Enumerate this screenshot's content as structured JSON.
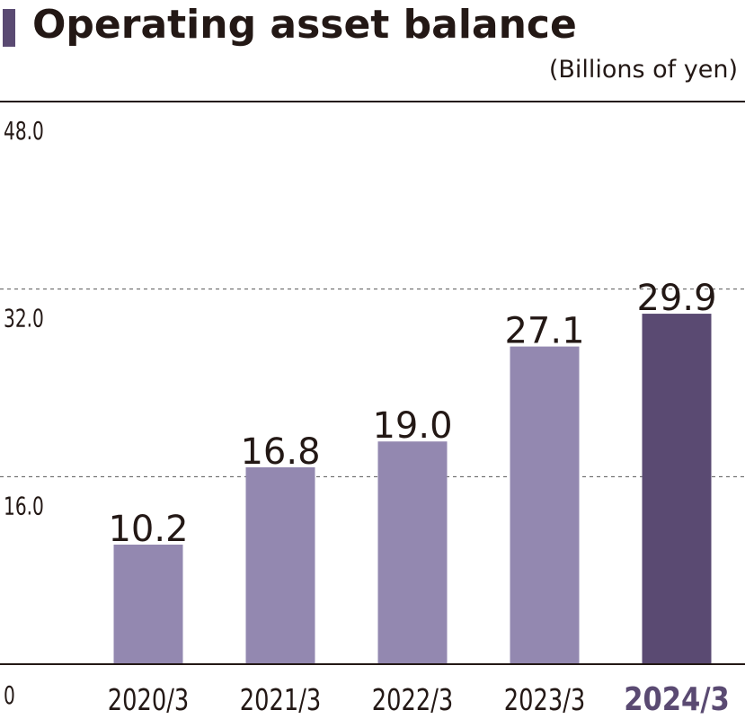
{
  "header": {
    "title": "Operating asset balance",
    "unit": "(Billions of yen)"
  },
  "colors": {
    "accent": "#5a4a72",
    "bar": "#9388b0",
    "bar_highlight": "#5a4a72",
    "text": "#231815",
    "grid": "#555555"
  },
  "chart_data": {
    "type": "bar",
    "title": "Operating asset balance",
    "ylabel": "(Billions of yen)",
    "xlabel": "",
    "categories": [
      "2020/3",
      "2021/3",
      "2022/3",
      "2023/3",
      "2024/3"
    ],
    "values": [
      10.2,
      16.8,
      19.0,
      27.1,
      29.9
    ],
    "value_labels": [
      "10.2",
      "16.8",
      "19.0",
      "27.1",
      "29.9"
    ],
    "highlight_category": "2024/3",
    "ylim": [
      0,
      48
    ],
    "yticks": [
      0,
      16,
      32,
      48
    ],
    "ytick_labels": [
      "0",
      "16.0",
      "32.0",
      "48.0"
    ],
    "grid": "dashed at 16.0 and 32.0",
    "legend": "none"
  }
}
